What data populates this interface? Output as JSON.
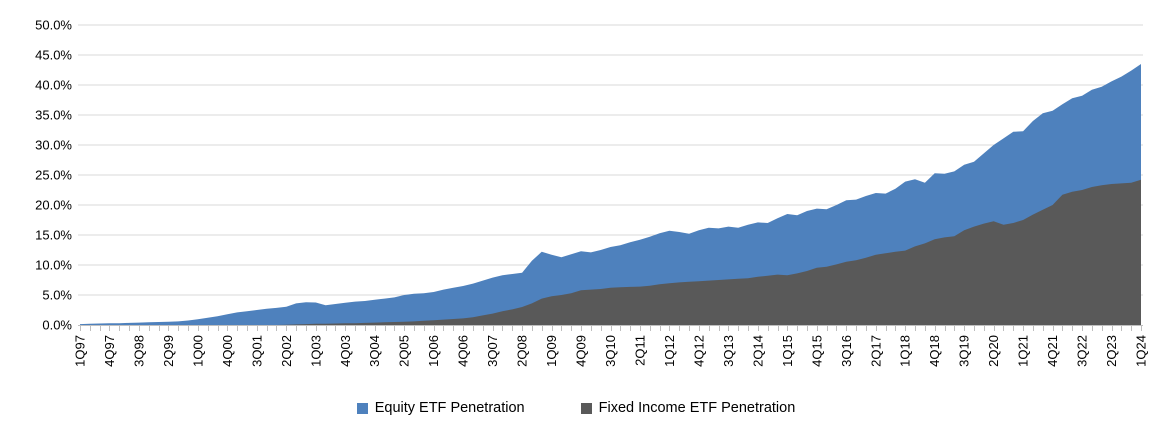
{
  "chart_data": {
    "type": "area",
    "overlay": true,
    "title": "",
    "xlabel": "",
    "ylabel": "",
    "ylim": [
      0,
      50
    ],
    "grid": true,
    "legend_position": "bottom-center",
    "x_label_interval": 3,
    "y_ticks": [
      "0.0%",
      "5.0%",
      "10.0%",
      "15.0%",
      "20.0%",
      "25.0%",
      "30.0%",
      "35.0%",
      "40.0%",
      "45.0%",
      "50.0%"
    ],
    "x": [
      "1Q97",
      "2Q97",
      "3Q97",
      "4Q97",
      "1Q98",
      "2Q98",
      "3Q98",
      "4Q98",
      "1Q99",
      "2Q99",
      "3Q99",
      "4Q99",
      "1Q00",
      "2Q00",
      "3Q00",
      "4Q00",
      "1Q01",
      "2Q01",
      "3Q01",
      "4Q01",
      "1Q02",
      "2Q02",
      "3Q02",
      "4Q02",
      "1Q03",
      "2Q03",
      "3Q03",
      "4Q03",
      "1Q04",
      "2Q04",
      "3Q04",
      "4Q04",
      "1Q05",
      "2Q05",
      "3Q05",
      "4Q05",
      "1Q06",
      "2Q06",
      "3Q06",
      "4Q06",
      "1Q07",
      "2Q07",
      "3Q07",
      "4Q07",
      "1Q08",
      "2Q08",
      "3Q08",
      "4Q08",
      "1Q09",
      "2Q09",
      "3Q09",
      "4Q09",
      "1Q10",
      "2Q10",
      "3Q10",
      "4Q10",
      "1Q11",
      "2Q11",
      "3Q11",
      "4Q11",
      "1Q12",
      "2Q12",
      "3Q12",
      "4Q12",
      "1Q13",
      "2Q13",
      "3Q13",
      "4Q13",
      "1Q14",
      "2Q14",
      "3Q14",
      "4Q14",
      "1Q15",
      "2Q15",
      "3Q15",
      "4Q15",
      "1Q16",
      "2Q16",
      "3Q16",
      "4Q16",
      "1Q17",
      "2Q17",
      "3Q17",
      "4Q17",
      "1Q18",
      "2Q18",
      "3Q18",
      "4Q18",
      "1Q19",
      "2Q19",
      "3Q19",
      "4Q19",
      "1Q20",
      "2Q20",
      "3Q20",
      "4Q20",
      "1Q21",
      "2Q21",
      "3Q21",
      "4Q21",
      "1Q22",
      "2Q22",
      "3Q22",
      "4Q22",
      "1Q23",
      "2Q23",
      "3Q23",
      "4Q23",
      "1Q24"
    ],
    "series": [
      {
        "name": "Equity ETF Penetration",
        "color": "#4E81BD",
        "values": [
          0.15,
          0.2,
          0.25,
          0.3,
          0.3,
          0.35,
          0.4,
          0.45,
          0.5,
          0.55,
          0.6,
          0.75,
          0.95,
          1.2,
          1.45,
          1.8,
          2.1,
          2.3,
          2.5,
          2.7,
          2.85,
          3.05,
          3.6,
          3.8,
          3.75,
          3.3,
          3.5,
          3.7,
          3.9,
          4.0,
          4.2,
          4.4,
          4.6,
          5.0,
          5.2,
          5.3,
          5.5,
          5.9,
          6.2,
          6.5,
          6.9,
          7.4,
          7.9,
          8.3,
          8.5,
          8.7,
          10.7,
          12.2,
          11.7,
          11.3,
          11.8,
          12.3,
          12.1,
          12.5,
          13.0,
          13.3,
          13.8,
          14.2,
          14.7,
          15.3,
          15.7,
          15.5,
          15.2,
          15.8,
          16.2,
          16.1,
          16.4,
          16.2,
          16.7,
          17.1,
          17.0,
          17.8,
          18.5,
          18.3,
          19.0,
          19.4,
          19.3,
          20.0,
          20.8,
          20.9,
          21.5,
          22.0,
          21.9,
          22.7,
          23.9,
          24.3,
          23.7,
          25.3,
          25.2,
          25.6,
          26.7,
          27.2,
          28.6,
          30.0,
          31.1,
          32.2,
          32.3,
          34.0,
          35.3,
          35.7,
          36.8,
          37.8,
          38.2,
          39.2,
          39.7,
          40.6,
          41.4,
          42.4,
          43.5
        ]
      },
      {
        "name": "Fixed Income ETF Penetration",
        "color": "#595959",
        "values": [
          0,
          0,
          0,
          0,
          0,
          0,
          0,
          0,
          0,
          0,
          0,
          0,
          0,
          0,
          0,
          0,
          0,
          0,
          0,
          0,
          0,
          0.05,
          0.1,
          0.15,
          0.2,
          0.2,
          0.25,
          0.3,
          0.3,
          0.35,
          0.4,
          0.45,
          0.5,
          0.55,
          0.6,
          0.7,
          0.8,
          0.9,
          1.0,
          1.1,
          1.3,
          1.6,
          1.9,
          2.3,
          2.6,
          3.0,
          3.6,
          4.4,
          4.8,
          5.0,
          5.3,
          5.8,
          5.9,
          6.0,
          6.2,
          6.3,
          6.35,
          6.4,
          6.55,
          6.8,
          6.95,
          7.1,
          7.2,
          7.3,
          7.4,
          7.5,
          7.6,
          7.7,
          7.8,
          8.05,
          8.2,
          8.4,
          8.3,
          8.6,
          9.0,
          9.55,
          9.7,
          10.1,
          10.55,
          10.8,
          11.2,
          11.7,
          11.95,
          12.2,
          12.4,
          13.1,
          13.6,
          14.3,
          14.6,
          14.8,
          15.8,
          16.4,
          16.9,
          17.3,
          16.7,
          17.0,
          17.5,
          18.4,
          19.2,
          20.0,
          21.7,
          22.2,
          22.5,
          23.0,
          23.3,
          23.5,
          23.6,
          23.7,
          24.2
        ]
      }
    ],
    "colors": {
      "gridline": "#D9D9D9",
      "axis": "#BFBFBF",
      "text": "#000000",
      "background": "#FFFFFF"
    }
  }
}
